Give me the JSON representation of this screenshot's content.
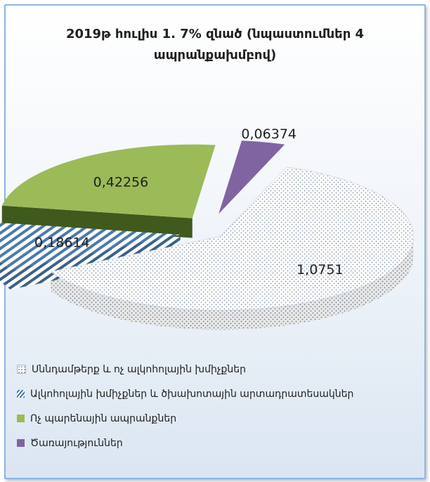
{
  "chart_data": {
    "type": "pie",
    "title_lines": [
      "2019թ հուլիս 1. 7% զնած (նպաստումներ 4",
      "ապրանքախմբով)"
    ],
    "slices": [
      {
        "label": "Սննդամթերք և ոչ ալկոհոլային խմիչքներ",
        "value": 1.0751,
        "value_label": "1,0751",
        "color": "#ffffff",
        "pattern": "dots"
      },
      {
        "label": "Ալկոհոլային խմիչքներ և ծխախոտային արտադրատեսակներ",
        "value": 0.18614,
        "value_label": "0,18614",
        "color": "#2e5c8a",
        "pattern": "diagonal-stripes"
      },
      {
        "label": "Ոչ պարենային ապրանքներ",
        "value": 0.42256,
        "value_label": "0,42256",
        "color": "#9bbb59",
        "pattern": "solid"
      },
      {
        "label": "Ծառայություններ",
        "value": 0.06374,
        "value_label": "0,06374",
        "color": "#8064a2",
        "pattern": "solid"
      }
    ],
    "legend_position": "bottom"
  }
}
